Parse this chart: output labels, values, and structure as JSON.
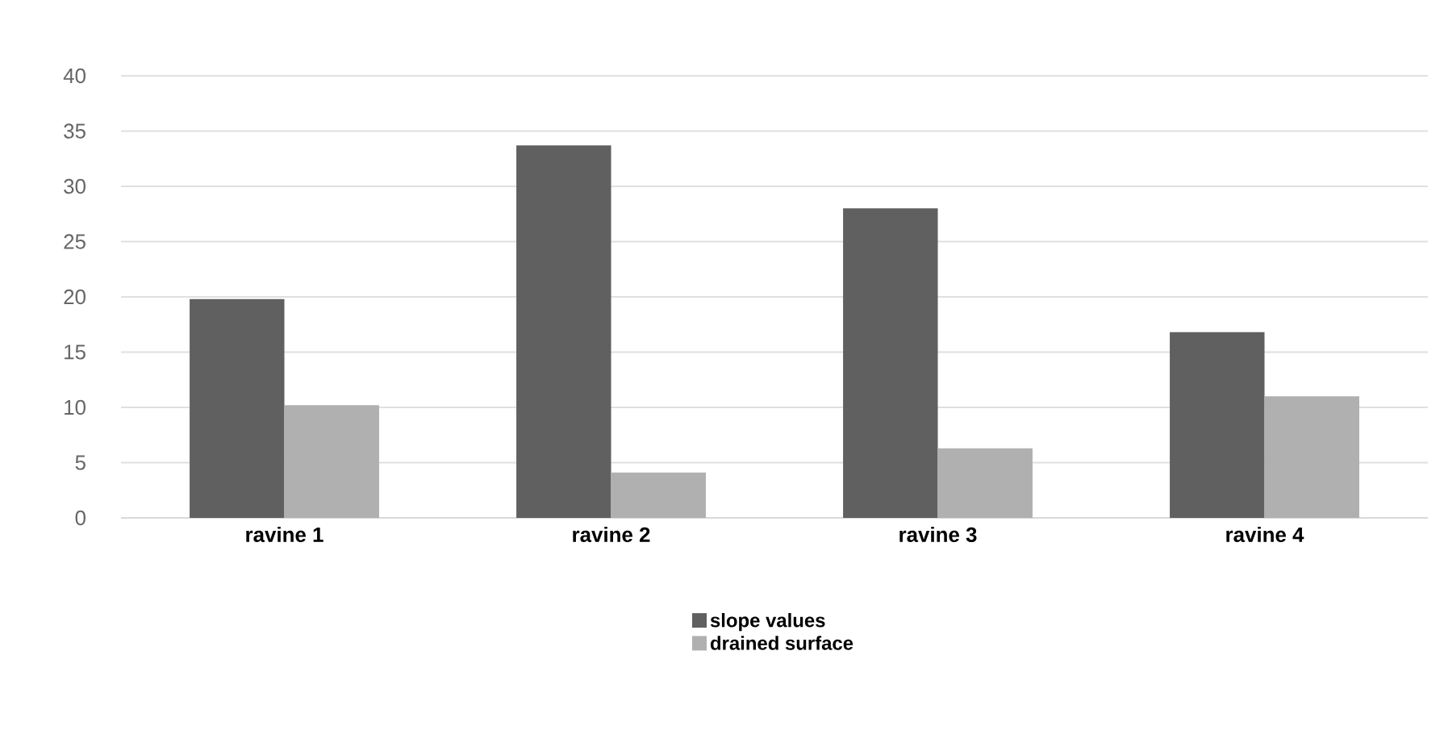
{
  "chart_data": {
    "type": "bar",
    "categories": [
      "ravine 1",
      "ravine 2",
      "ravine 3",
      "ravine 4"
    ],
    "series": [
      {
        "name": "slope values",
        "color": "#606060",
        "values": [
          19.8,
          33.7,
          28.0,
          16.8
        ]
      },
      {
        "name": "drained surface",
        "color": "#b0b0b0",
        "values": [
          10.2,
          4.1,
          6.3,
          11.0
        ]
      }
    ],
    "ylim": [
      0,
      40
    ],
    "yticks": [
      0,
      5,
      10,
      15,
      20,
      25,
      30,
      35,
      40
    ],
    "grid": "y",
    "legend": "bottom"
  }
}
